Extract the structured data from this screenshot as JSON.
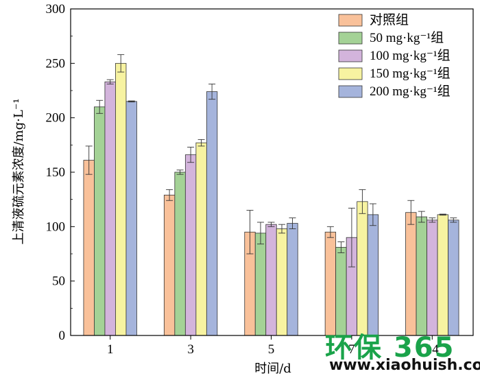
{
  "chart_data": {
    "type": "bar",
    "xlabel": "时间/d",
    "ylabel": "上清液硫元素浓度/mg·L⁻¹",
    "categories": [
      "1",
      "3",
      "5",
      "7",
      "14"
    ],
    "ylim": [
      0,
      300
    ],
    "yticks": [
      "0",
      "50",
      "100",
      "150",
      "200",
      "250",
      "300"
    ],
    "legend_position": "top-right",
    "series": [
      {
        "name": "对照组",
        "color": "#f9c19a",
        "values": [
          161,
          129,
          95,
          95,
          113
        ],
        "errors": [
          13,
          5,
          20,
          5,
          11
        ]
      },
      {
        "name": "50 mg·kg⁻¹组",
        "color": "#a4d296",
        "values": [
          210,
          150,
          94,
          81,
          109
        ],
        "errors": [
          6,
          2,
          10,
          5,
          5
        ]
      },
      {
        "name": "100 mg·kg⁻¹组",
        "color": "#d3b4dc",
        "values": [
          233,
          166,
          102,
          90,
          106
        ],
        "errors": [
          2,
          7,
          2,
          27,
          2
        ]
      },
      {
        "name": "150 mg·kg⁻¹组",
        "color": "#f7f3a1",
        "values": [
          250,
          177,
          98,
          123,
          111
        ],
        "errors": [
          8,
          3,
          4,
          11,
          0.5
        ]
      },
      {
        "name": "200 mg·kg⁻¹组",
        "color": "#a5b4dc",
        "values": [
          215,
          224,
          103,
          111,
          106
        ],
        "errors": [
          0.5,
          7,
          5,
          10,
          2
        ]
      }
    ]
  },
  "watermark": {
    "brand": "环保",
    "number": "365",
    "url": "www.xiaohuish.com"
  }
}
